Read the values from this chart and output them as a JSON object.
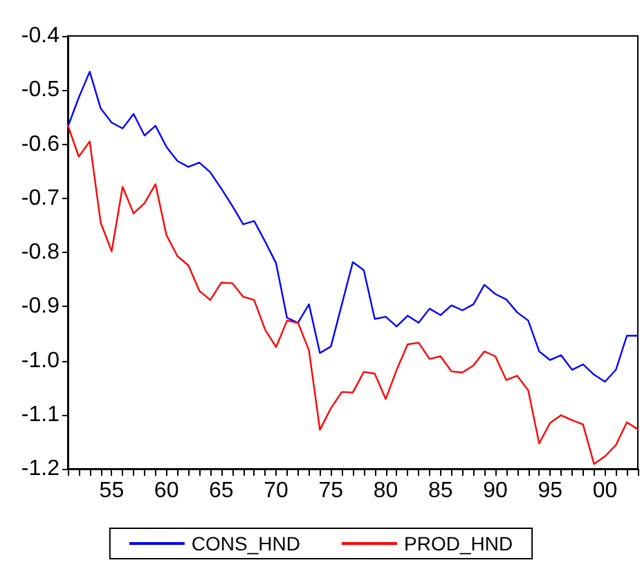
{
  "chart_data": {
    "type": "line",
    "x": [
      1951,
      1952,
      1953,
      1954,
      1955,
      1956,
      1957,
      1958,
      1959,
      1960,
      1961,
      1962,
      1963,
      1964,
      1965,
      1966,
      1967,
      1968,
      1969,
      1970,
      1971,
      1972,
      1973,
      1974,
      1975,
      1976,
      1977,
      1978,
      1979,
      1980,
      1981,
      1982,
      1983,
      1984,
      1985,
      1986,
      1987,
      1988,
      1989,
      1990,
      1991,
      1992,
      1993,
      1994,
      1995,
      1996,
      1997,
      1998,
      1999,
      2000,
      2001,
      2002,
      2003
    ],
    "series": [
      {
        "name": "CONS_HND",
        "color": "#0000ff",
        "values": [
          -0.568,
          -0.514,
          -0.466,
          -0.534,
          -0.56,
          -0.571,
          -0.544,
          -0.584,
          -0.566,
          -0.605,
          -0.631,
          -0.642,
          -0.634,
          -0.652,
          -0.682,
          -0.714,
          -0.748,
          -0.742,
          -0.78,
          -0.82,
          -0.921,
          -0.93,
          -0.896,
          -0.986,
          -0.974,
          -0.896,
          -0.818,
          -0.833,
          -0.923,
          -0.919,
          -0.937,
          -0.917,
          -0.93,
          -0.904,
          -0.916,
          -0.898,
          -0.907,
          -0.896,
          -0.86,
          -0.877,
          -0.887,
          -0.911,
          -0.926,
          -0.983,
          -0.999,
          -0.99,
          -1.017,
          -1.007,
          -1.026,
          -1.039,
          -1.017,
          -0.954,
          -0.954
        ]
      },
      {
        "name": "PROD_HND",
        "color": "#ff0000",
        "values": [
          -0.565,
          -0.623,
          -0.595,
          -0.745,
          -0.798,
          -0.679,
          -0.728,
          -0.709,
          -0.674,
          -0.768,
          -0.807,
          -0.824,
          -0.871,
          -0.888,
          -0.856,
          -0.857,
          -0.882,
          -0.888,
          -0.943,
          -0.975,
          -0.926,
          -0.93,
          -0.981,
          -1.128,
          -1.088,
          -1.058,
          -1.059,
          -1.021,
          -1.024,
          -1.071,
          -1.017,
          -0.97,
          -0.967,
          -0.997,
          -0.992,
          -1.02,
          -1.022,
          -1.009,
          -0.983,
          -0.992,
          -1.036,
          -1.028,
          -1.055,
          -1.153,
          -1.115,
          -1.101,
          -1.11,
          -1.118,
          -1.191,
          -1.177,
          -1.156,
          -1.114,
          -1.127
        ]
      }
    ],
    "xlim": [
      1951,
      2003
    ],
    "xticks": [
      {
        "value": 1951,
        "label": null
      },
      {
        "value": 1952,
        "label": null
      },
      {
        "value": 1953,
        "label": null
      },
      {
        "value": 1954,
        "label": null
      },
      {
        "value": 1955,
        "label": "55"
      },
      {
        "value": 1956,
        "label": null
      },
      {
        "value": 1957,
        "label": null
      },
      {
        "value": 1958,
        "label": null
      },
      {
        "value": 1959,
        "label": null
      },
      {
        "value": 1960,
        "label": "60"
      },
      {
        "value": 1961,
        "label": null
      },
      {
        "value": 1962,
        "label": null
      },
      {
        "value": 1963,
        "label": null
      },
      {
        "value": 1964,
        "label": null
      },
      {
        "value": 1965,
        "label": "65"
      },
      {
        "value": 1966,
        "label": null
      },
      {
        "value": 1967,
        "label": null
      },
      {
        "value": 1968,
        "label": null
      },
      {
        "value": 1969,
        "label": null
      },
      {
        "value": 1970,
        "label": "70"
      },
      {
        "value": 1971,
        "label": null
      },
      {
        "value": 1972,
        "label": null
      },
      {
        "value": 1973,
        "label": null
      },
      {
        "value": 1974,
        "label": null
      },
      {
        "value": 1975,
        "label": "75"
      },
      {
        "value": 1976,
        "label": null
      },
      {
        "value": 1977,
        "label": null
      },
      {
        "value": 1978,
        "label": null
      },
      {
        "value": 1979,
        "label": null
      },
      {
        "value": 1980,
        "label": "80"
      },
      {
        "value": 1981,
        "label": null
      },
      {
        "value": 1982,
        "label": null
      },
      {
        "value": 1983,
        "label": null
      },
      {
        "value": 1984,
        "label": null
      },
      {
        "value": 1985,
        "label": "85"
      },
      {
        "value": 1986,
        "label": null
      },
      {
        "value": 1987,
        "label": null
      },
      {
        "value": 1988,
        "label": null
      },
      {
        "value": 1989,
        "label": null
      },
      {
        "value": 1990,
        "label": "90"
      },
      {
        "value": 1991,
        "label": null
      },
      {
        "value": 1992,
        "label": null
      },
      {
        "value": 1993,
        "label": null
      },
      {
        "value": 1994,
        "label": null
      },
      {
        "value": 1995,
        "label": "95"
      },
      {
        "value": 1996,
        "label": null
      },
      {
        "value": 1997,
        "label": null
      },
      {
        "value": 1998,
        "label": null
      },
      {
        "value": 1999,
        "label": null
      },
      {
        "value": 2000,
        "label": "00"
      },
      {
        "value": 2001,
        "label": null
      },
      {
        "value": 2002,
        "label": null
      },
      {
        "value": 2003,
        "label": null
      }
    ],
    "ylim": [
      -1.2,
      -0.4
    ],
    "yticks": [
      -1.2,
      -1.1,
      {
        "value": -1.0,
        "label": "-1.0"
      },
      -0.9,
      -0.8,
      -0.7,
      -0.6,
      -0.5,
      -0.4
    ],
    "legend": "bottom",
    "marker": "none",
    "line_style": "solid",
    "grid": false
  }
}
